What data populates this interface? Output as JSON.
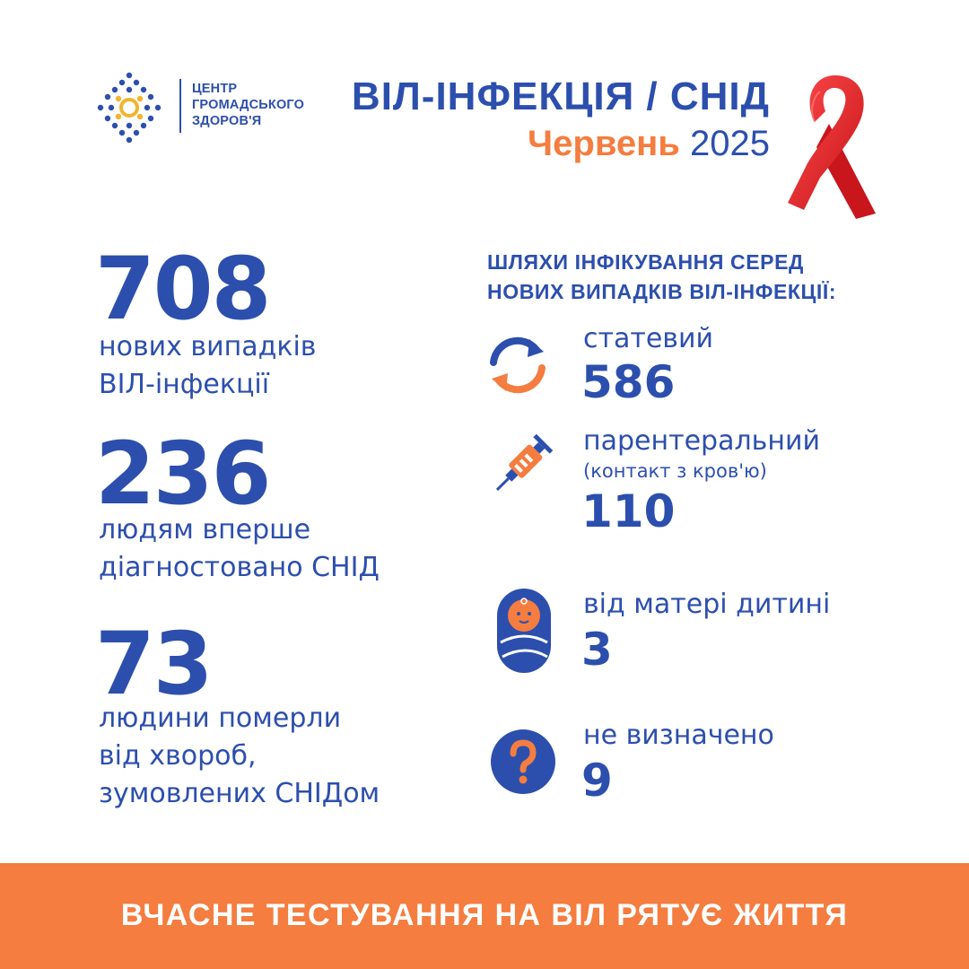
{
  "header": {
    "logo_lines": [
      "ЦЕНТР",
      "ГРОМАДСЬКОГО",
      "ЗДОРОВ'Я"
    ],
    "title": "ВІЛ-ІНФЕКЦІЯ / СНІД",
    "month": "Червень",
    "year": "2025"
  },
  "stats": [
    {
      "value": "708",
      "lines": [
        "нових випадків",
        "ВІЛ-інфекції"
      ]
    },
    {
      "value": "236",
      "lines": [
        "людям вперше",
        "діагностовано СНІД"
      ]
    },
    {
      "value": "73",
      "lines": [
        "людини померли",
        "від хвороб,",
        "зумовлених СНІДом"
      ]
    }
  ],
  "routes": {
    "title_lines": [
      "ШЛЯХИ ІНФІКУВАННЯ СЕРЕД",
      "НОВИХ ВИПАДКІВ ВІЛ-ІНФЕКЦІЇ:"
    ],
    "items": [
      {
        "label": "статевий",
        "value": "586",
        "icon": "arrows-cycle-icon"
      },
      {
        "label": "парентеральний",
        "sublabel": "(контакт з кров'ю)",
        "value": "110",
        "icon": "syringe-icon"
      },
      {
        "label": "від матері дитині",
        "value": "3",
        "icon": "baby-icon"
      },
      {
        "label": "не визначено",
        "value": "9",
        "icon": "question-icon"
      }
    ]
  },
  "footer": {
    "text": "ВЧАСНЕ ТЕСТУВАННЯ НА ВІЛ РЯТУЄ ЖИТТЯ"
  },
  "colors": {
    "blue": "#2c4fae",
    "orange": "#f47d3f",
    "red_ribbon": "#e0262a",
    "logo_yellow": "#f2b52e"
  }
}
